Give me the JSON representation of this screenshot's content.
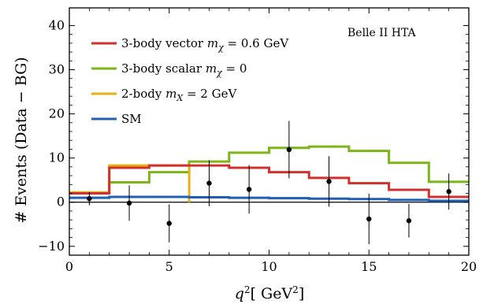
{
  "chart_data": {
    "type": "line",
    "title": "",
    "xlabel": "q^2[ GeV^2]",
    "ylabel": "# Events (Data − BG)",
    "xlim": [
      0,
      20
    ],
    "ylim": [
      -12,
      44
    ],
    "xticks": [
      0,
      5,
      10,
      15,
      20
    ],
    "yticks": [
      -10,
      0,
      10,
      20,
      30,
      40
    ],
    "annotation": "Belle II HTA",
    "legend_position": "top-left",
    "colors": {
      "vector": "#d0312d",
      "scalar": "#7cb518",
      "twobody": "#e8b011",
      "sm": "#1f5fb4",
      "data": "#000000"
    },
    "series": [
      {
        "key": "vector",
        "name": "3-body vector mχ = 0.6 GeV",
        "legend": {
          "pre": "3-body vector ",
          "sym": "m",
          "sub": "χ",
          "post": " = 0.6 GeV"
        },
        "bin_edges": [
          0,
          2,
          4,
          6,
          8,
          10,
          12,
          14,
          16,
          18,
          20
        ],
        "values": [
          2.0,
          7.8,
          8.3,
          8.3,
          7.8,
          6.8,
          5.5,
          4.3,
          2.8,
          1.2
        ]
      },
      {
        "key": "scalar",
        "name": "3-body scalar mχ = 0",
        "legend": {
          "pre": "3-body scalar ",
          "sym": "m",
          "sub": "χ",
          "post": " = 0"
        },
        "bin_edges": [
          0,
          2,
          4,
          6,
          8,
          10,
          12,
          14,
          16,
          18,
          20
        ],
        "values": [
          2.2,
          4.5,
          6.8,
          9.2,
          11.2,
          12.3,
          12.6,
          11.6,
          8.9,
          4.6
        ]
      },
      {
        "key": "twobody",
        "name": "2-body mX = 2 GeV",
        "legend": {
          "pre": "2-body ",
          "sym": "m",
          "sub": "X",
          "post": " = 2 GeV"
        },
        "bin_edges": [
          0,
          2,
          4,
          6
        ],
        "values": [
          2.2,
          8.3,
          8.3
        ]
      },
      {
        "key": "sm",
        "name": "SM",
        "legend": {
          "pre": "SM",
          "sym": "",
          "sub": "",
          "post": ""
        },
        "bin_edges": [
          0,
          2,
          4,
          6,
          8,
          10,
          12,
          14,
          16,
          18,
          20
        ],
        "values": [
          1.0,
          1.2,
          1.2,
          1.1,
          1.0,
          0.9,
          0.8,
          0.7,
          0.5,
          0.3
        ]
      }
    ],
    "data_points": {
      "name": "Data",
      "x": [
        1,
        3,
        5,
        7,
        9,
        11,
        13,
        15,
        17,
        19
      ],
      "y": [
        0.8,
        -0.2,
        -4.8,
        4.3,
        2.9,
        11.9,
        4.7,
        -3.8,
        -4.2,
        2.4
      ],
      "err": [
        1.5,
        4.0,
        4.3,
        5.2,
        5.5,
        6.5,
        5.7,
        5.7,
        3.8,
        4.1
      ]
    }
  }
}
